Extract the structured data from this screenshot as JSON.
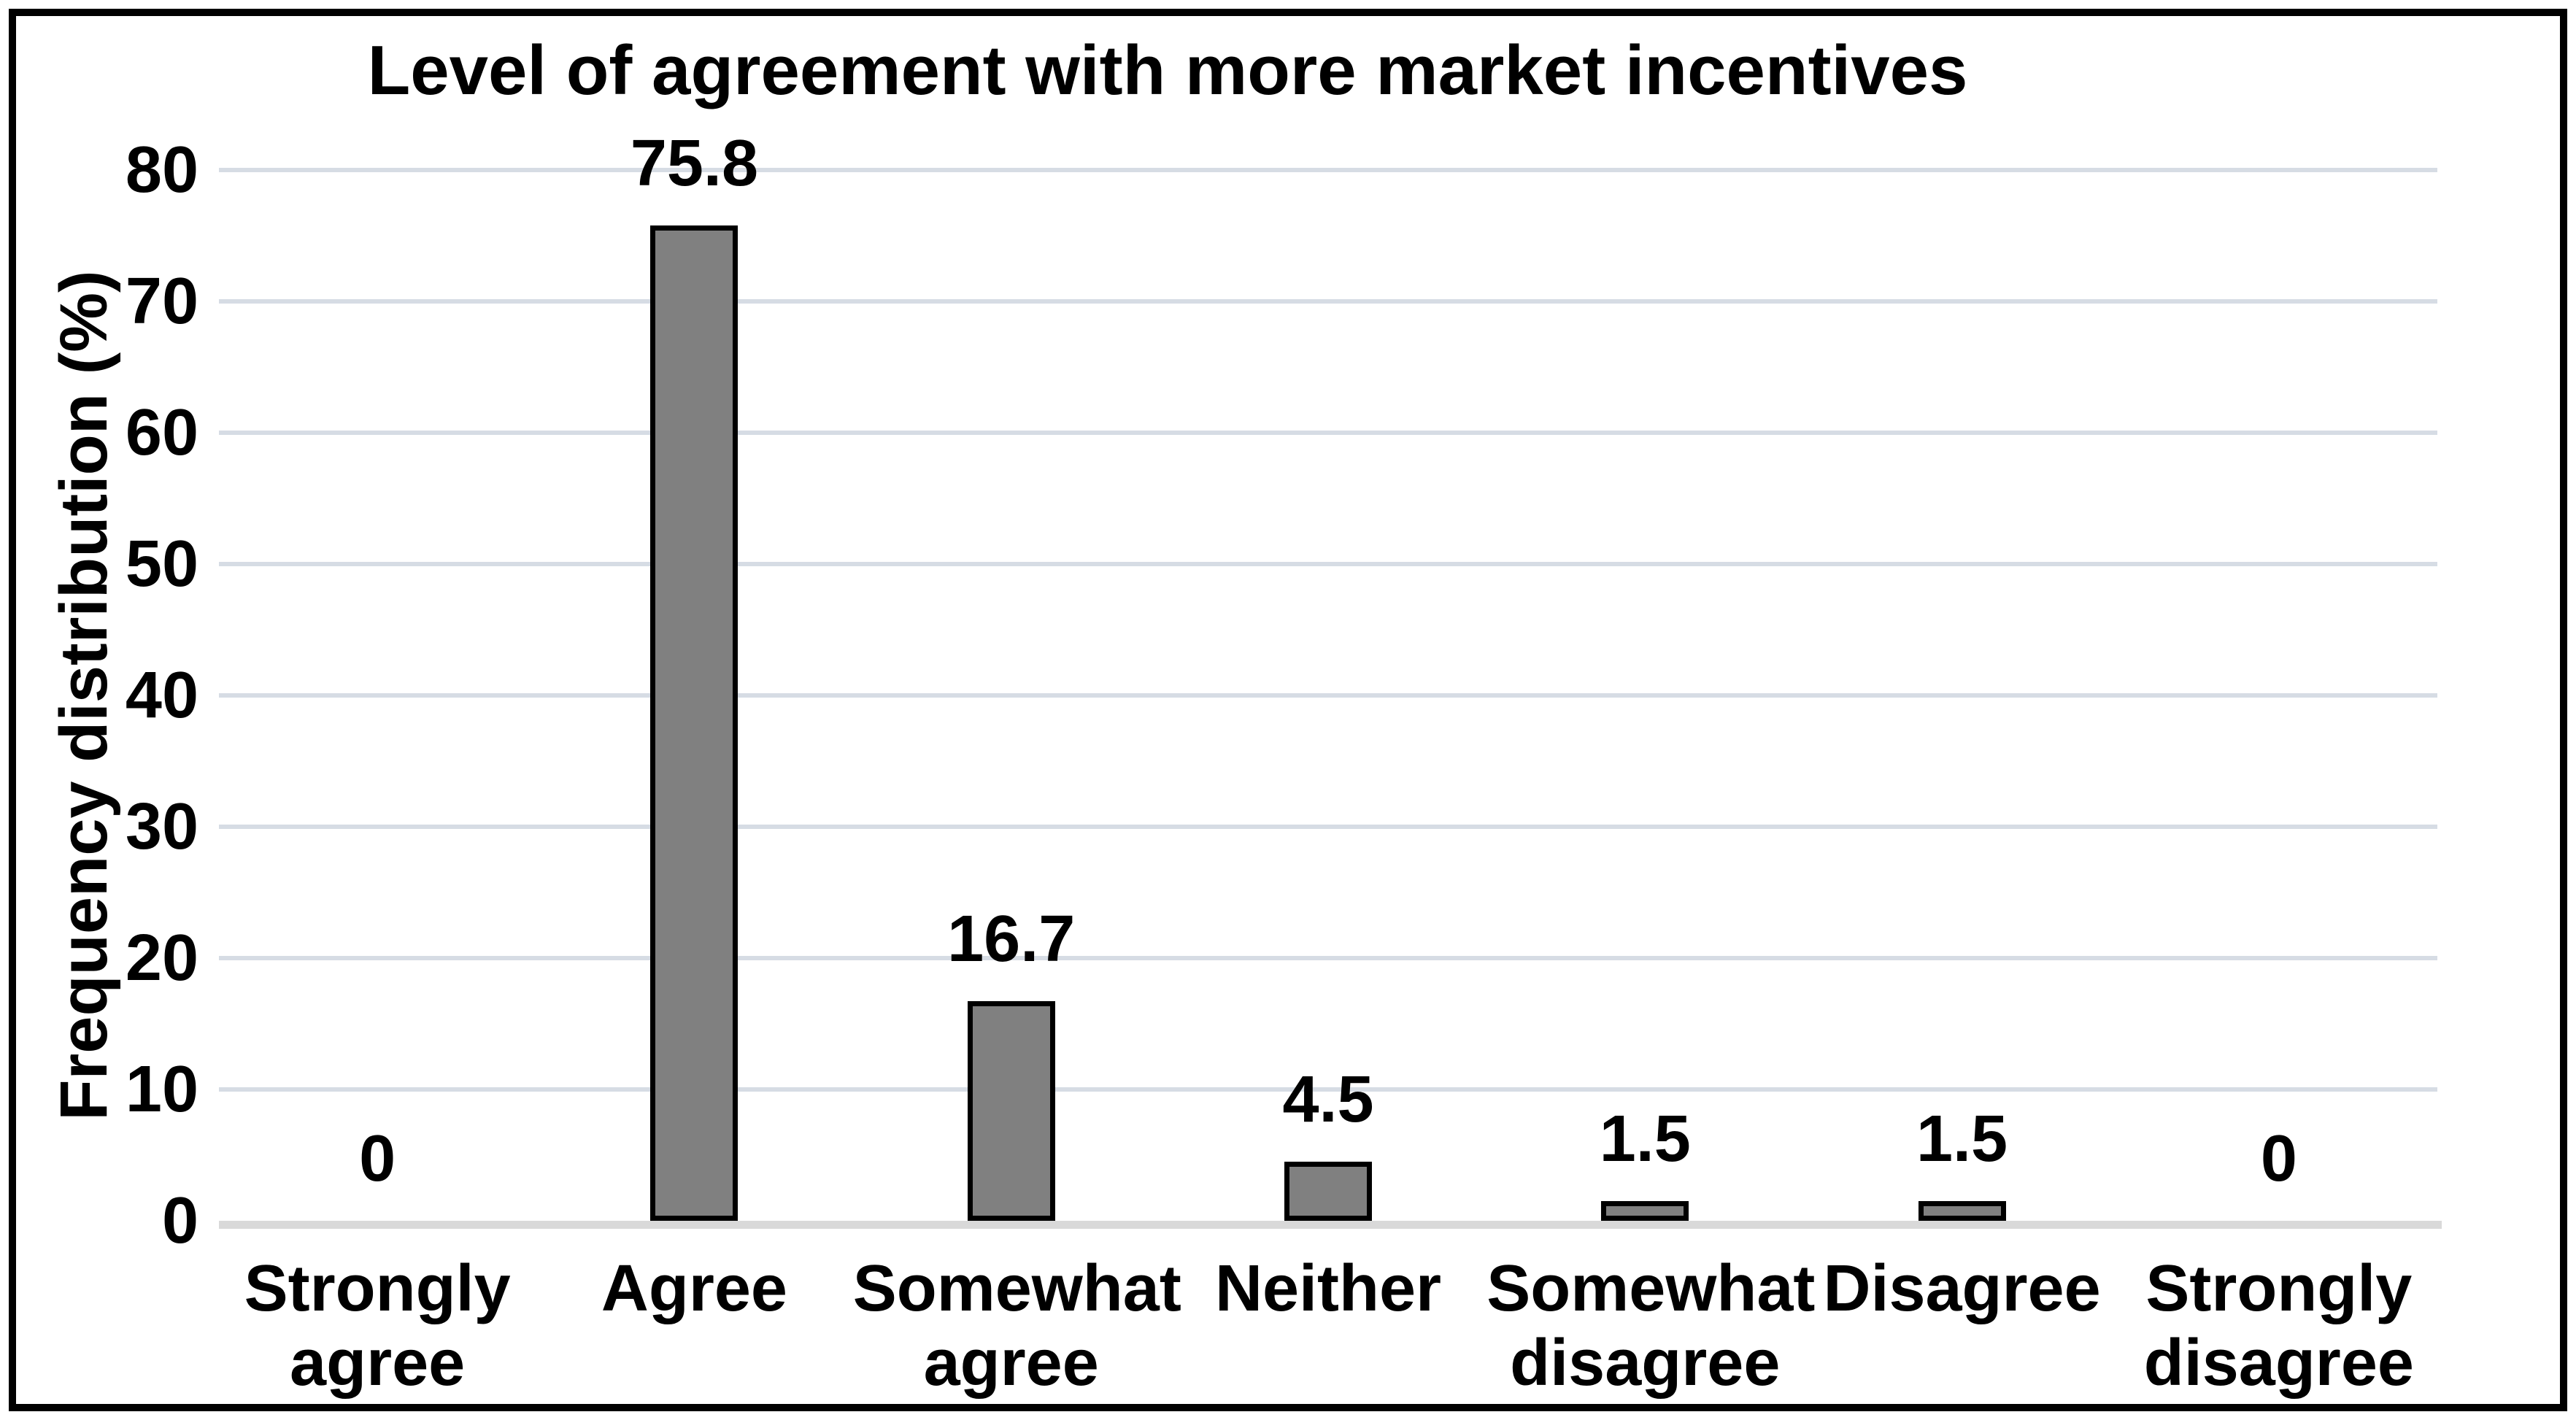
{
  "chart_data": {
    "type": "bar",
    "title": "Level of agreement with more market incentives",
    "xlabel": "",
    "ylabel": "Frequency distribution (%)",
    "categories": [
      "Strongly agree",
      "Agree",
      "Somewhat agree",
      "Neither",
      "Somewhat disagree",
      "Disagree",
      "Strongly disagree"
    ],
    "category_label_lines": [
      [
        "Strongly",
        "agree"
      ],
      [
        "Agree"
      ],
      [
        "Somewhat",
        "agree"
      ],
      [
        "Neither"
      ],
      [
        "Somewhat",
        "disagree"
      ],
      [
        "Disagree"
      ],
      [
        "Strongly",
        "disagree"
      ]
    ],
    "values": [
      0,
      75.8,
      16.7,
      4.5,
      1.5,
      1.5,
      0
    ],
    "data_labels": [
      "0",
      "75.8",
      "16.7",
      "4.5",
      "1.5",
      "1.5",
      "0"
    ],
    "yticks": [
      0,
      10,
      20,
      30,
      40,
      50,
      60,
      70,
      80
    ],
    "ylim": [
      0,
      80
    ],
    "grid": "horizontal",
    "legend_position": "none",
    "colors": {
      "background": "#ffffff",
      "frame_border": "#000000",
      "bar_fill": "#808080",
      "bar_border": "#000000",
      "gridline": "#d6dce4",
      "axis_line": "#d9d9d9",
      "text": "#000000"
    }
  }
}
